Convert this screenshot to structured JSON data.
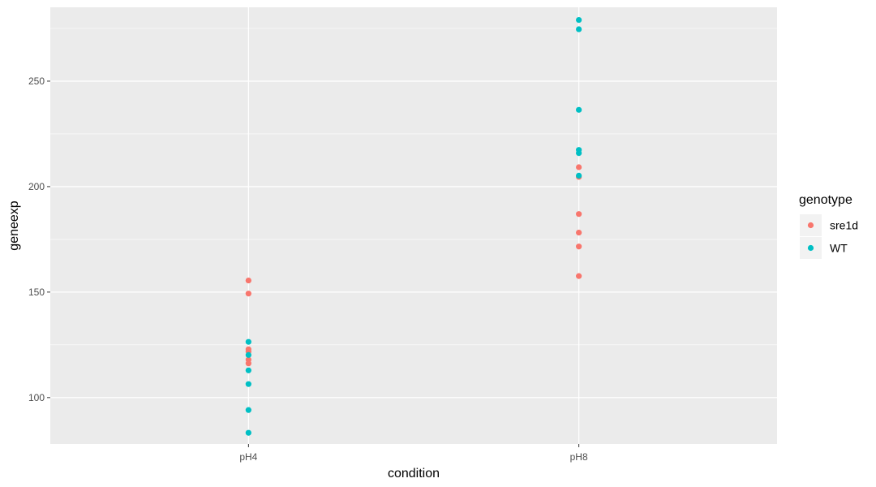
{
  "chart_data": {
    "type": "scatter",
    "title": "",
    "xlabel": "condition",
    "ylabel": "geneexp",
    "categories": [
      "pH4",
      "pH8"
    ],
    "ylim": [
      78,
      285
    ],
    "y_ticks": [
      100,
      150,
      200,
      250
    ],
    "grid": true,
    "legend": {
      "title": "genotype",
      "position": "right"
    },
    "colors": {
      "panel": "#ebebeb",
      "grid": "#ffffff",
      "tick": "#333333"
    },
    "series": [
      {
        "name": "sre1d",
        "color": "#F8766D",
        "points": [
          {
            "x": "pH4",
            "y": 155.5
          },
          {
            "x": "pH4",
            "y": 149.3
          },
          {
            "x": "pH4",
            "y": 122.9
          },
          {
            "x": "pH4",
            "y": 121.8
          },
          {
            "x": "pH4",
            "y": 118.0
          },
          {
            "x": "pH4",
            "y": 116.2
          },
          {
            "x": "pH8",
            "y": 209.2
          },
          {
            "x": "pH8",
            "y": 204.6
          },
          {
            "x": "pH8",
            "y": 187.0
          },
          {
            "x": "pH8",
            "y": 178.2
          },
          {
            "x": "pH8",
            "y": 171.6
          },
          {
            "x": "pH8",
            "y": 157.6
          }
        ]
      },
      {
        "name": "WT",
        "color": "#00BFC4",
        "points": [
          {
            "x": "pH4",
            "y": 126.4
          },
          {
            "x": "pH4",
            "y": 120.2
          },
          {
            "x": "pH4",
            "y": 112.9
          },
          {
            "x": "pH4",
            "y": 106.4
          },
          {
            "x": "pH4",
            "y": 94.1
          },
          {
            "x": "pH4",
            "y": 83.3
          },
          {
            "x": "pH8",
            "y": 279.0
          },
          {
            "x": "pH8",
            "y": 274.6
          },
          {
            "x": "pH8",
            "y": 236.4
          },
          {
            "x": "pH8",
            "y": 217.4
          },
          {
            "x": "pH8",
            "y": 215.9
          },
          {
            "x": "pH8",
            "y": 205.2
          }
        ]
      }
    ]
  }
}
